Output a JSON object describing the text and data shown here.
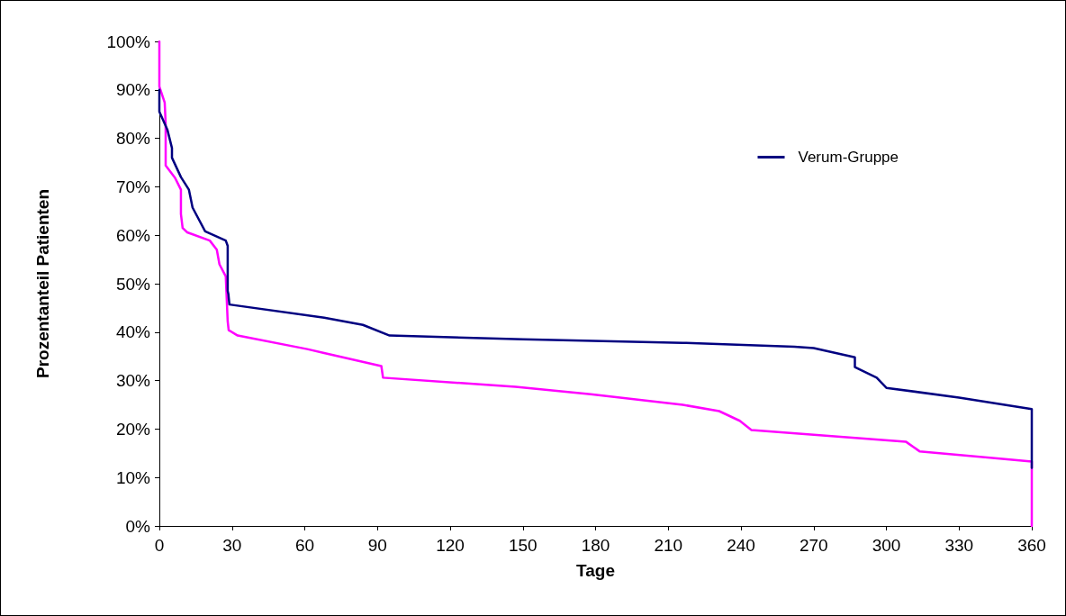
{
  "chart_data": {
    "type": "line",
    "xlabel": "Tage",
    "ylabel": "Prozentanteil Patienten",
    "xlim": [
      0,
      360
    ],
    "xticks": [
      0,
      30,
      60,
      90,
      120,
      150,
      180,
      210,
      240,
      270,
      300,
      330,
      360
    ],
    "ylim": [
      0,
      100
    ],
    "yticks": [
      {
        "value": 0,
        "label": "0%"
      },
      {
        "value": 10,
        "label": "10%"
      },
      {
        "value": 20,
        "label": "20%"
      },
      {
        "value": 30,
        "label": "30%"
      },
      {
        "value": 40,
        "label": "40%"
      },
      {
        "value": 50,
        "label": "50%"
      },
      {
        "value": 60,
        "label": "60%"
      },
      {
        "value": 70,
        "label": "70%"
      },
      {
        "value": 80,
        "label": "80%"
      },
      {
        "value": 90,
        "label": "90%"
      },
      {
        "value": 100,
        "label": "100%"
      }
    ],
    "grid": false,
    "legend": "top right",
    "marker": "none",
    "line_style": "solid",
    "series": [
      {
        "name": "Verum-Gruppe",
        "color": "#000080",
        "x": [
          0,
          0,
          3.3,
          5.2,
          5.2,
          8.9,
          12.2,
          13.7,
          18.9,
          27.4,
          28.2,
          28.2,
          28.5,
          28.9,
          68,
          84,
          95,
          150,
          216,
          262,
          270,
          287,
          287,
          296,
          300,
          330,
          360,
          360,
          360
        ],
        "values": [
          90,
          85.5,
          81.8,
          78,
          76,
          72,
          69.4,
          65.7,
          60.8,
          58.9,
          57.8,
          48.5,
          47.8,
          45.7,
          43,
          41.5,
          39.3,
          38.5,
          37.8,
          37,
          36.7,
          34.8,
          32.8,
          30.6,
          28.5,
          26.5,
          24.1,
          22.6,
          12
        ]
      },
      {
        "color": "#ff00ff",
        "x": [
          0,
          0,
          2.2,
          2.6,
          2.6,
          6.4,
          8.9,
          8.9,
          9.6,
          11.5,
          20.8,
          23.7,
          24.8,
          27.4,
          28.2,
          28.6,
          32.3,
          61,
          68,
          91.6,
          92.3,
          147,
          178,
          216,
          231,
          239.5,
          244.3,
          308,
          313.7,
          360,
          360
        ],
        "values": [
          100,
          90.7,
          87.4,
          83,
          74.4,
          71.9,
          69.4,
          64.4,
          61.5,
          60.6,
          58.9,
          57,
          54,
          51.5,
          42.2,
          40.4,
          39.3,
          36.5,
          35.7,
          33,
          30.6,
          28.7,
          27.2,
          25,
          23.7,
          21.7,
          19.8,
          17.4,
          15.4,
          13.3,
          0
        ]
      }
    ]
  }
}
